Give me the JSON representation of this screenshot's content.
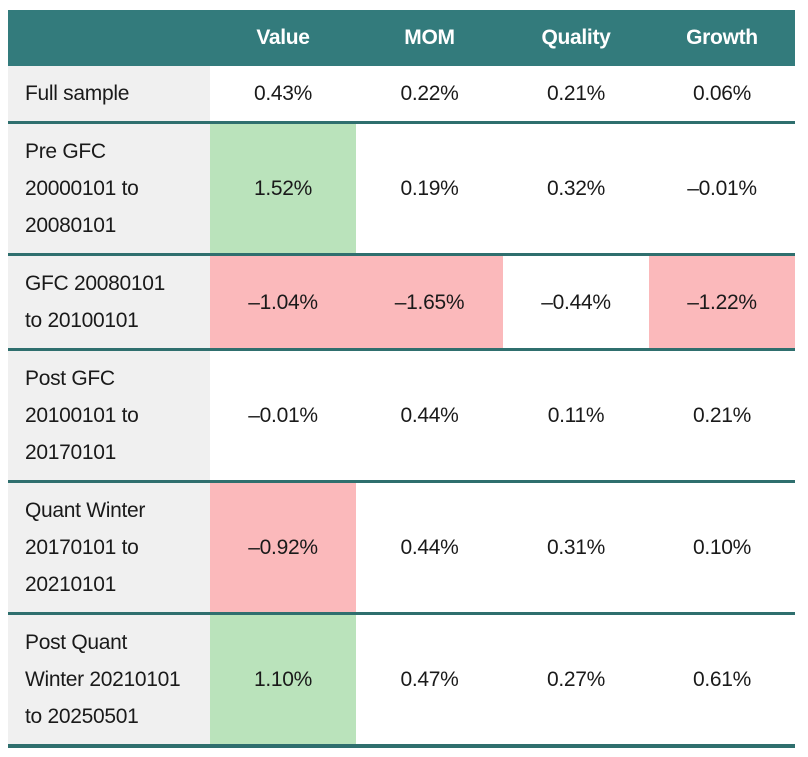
{
  "chart_data": {
    "type": "table",
    "columns": [
      "",
      "Value",
      "MOM",
      "Quality",
      "Growth"
    ],
    "rows": [
      {
        "label": "Full sample",
        "values": [
          "0.43%",
          "0.22%",
          "0.21%",
          "0.06%"
        ],
        "highlights": [
          null,
          null,
          null,
          null
        ]
      },
      {
        "label": "Pre GFC\n20000101 to\n20080101",
        "values": [
          "1.52%",
          "0.19%",
          "0.32%",
          "–0.01%"
        ],
        "highlights": [
          "positive",
          null,
          null,
          null
        ]
      },
      {
        "label": "GFC 20080101\nto 20100101",
        "values": [
          "–1.04%",
          "–1.65%",
          "–0.44%",
          "–1.22%"
        ],
        "highlights": [
          "negative",
          "negative",
          null,
          "negative"
        ]
      },
      {
        "label": "Post GFC\n20100101 to\n20170101",
        "values": [
          "–0.01%",
          "0.44%",
          "0.11%",
          "0.21%"
        ],
        "highlights": [
          null,
          null,
          null,
          null
        ]
      },
      {
        "label": "Quant Winter\n20170101 to\n20210101",
        "values": [
          "–0.92%",
          "0.44%",
          "0.31%",
          "0.10%"
        ],
        "highlights": [
          "negative",
          null,
          null,
          null
        ]
      },
      {
        "label": "Post Quant\nWinter 20210101\nto 20250501",
        "values": [
          "1.10%",
          "0.47%",
          "0.27%",
          "0.61%"
        ],
        "highlights": [
          "positive",
          null,
          null,
          null
        ]
      }
    ]
  },
  "colors": {
    "header_bg": "#337B7C",
    "header_text": "#FFFFFF",
    "divider": "#2F6F6E",
    "row_label_bg": "#F0F0F0",
    "positive_bg": "#BAE3BB",
    "negative_bg": "#FBB9BB",
    "body_text": "#1A1A1A",
    "page_bg": "#FFFFFF"
  }
}
